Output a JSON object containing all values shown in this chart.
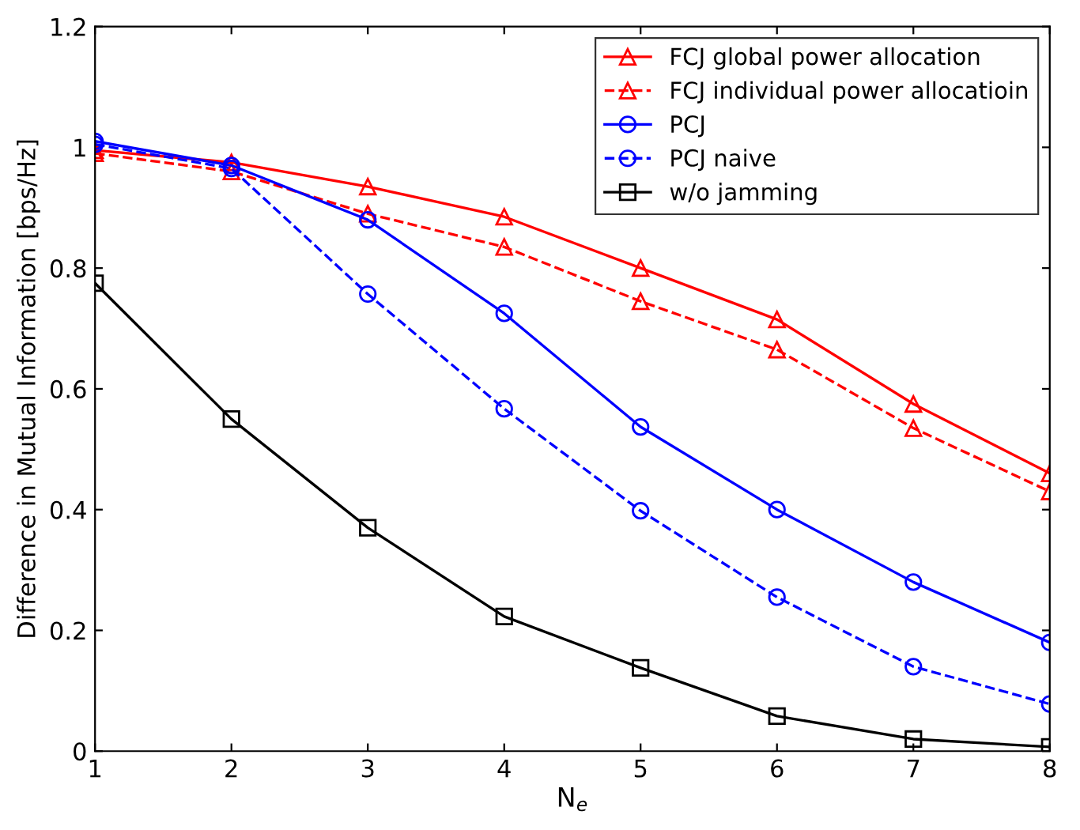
{
  "chart_data": {
    "type": "line",
    "xlabel": "N$_{e}$",
    "ylabel": "Difference in Mutual Information [bps/Hz]",
    "x": [
      1,
      2,
      3,
      4,
      5,
      6,
      7,
      8
    ],
    "series": [
      {
        "name": "FCJ global power allocation",
        "color": "#ff0000",
        "marker": "triangle",
        "line_style": "solid",
        "values": [
          0.995,
          0.975,
          0.935,
          0.885,
          0.8,
          0.715,
          0.575,
          0.46
        ]
      },
      {
        "name": "FCJ individual power allocatioin",
        "color": "#ff0000",
        "marker": "triangle",
        "line_style": "dashed",
        "values": [
          0.99,
          0.96,
          0.89,
          0.835,
          0.745,
          0.665,
          0.535,
          0.43
        ]
      },
      {
        "name": "PCJ",
        "color": "#0000ff",
        "marker": "circle",
        "line_style": "solid",
        "values": [
          1.01,
          0.97,
          0.88,
          0.725,
          0.537,
          0.4,
          0.28,
          0.18
        ]
      },
      {
        "name": "PCJ naive",
        "color": "#0000ff",
        "marker": "circle",
        "line_style": "dashed",
        "values": [
          1.005,
          0.965,
          0.757,
          0.567,
          0.398,
          0.255,
          0.14,
          0.078
        ]
      },
      {
        "name": "w/o jamming",
        "color": "#000000",
        "marker": "square",
        "line_style": "solid",
        "values": [
          0.775,
          0.55,
          0.37,
          0.223,
          0.138,
          0.058,
          0.02,
          0.007
        ]
      }
    ],
    "xlim": [
      1,
      8
    ],
    "xticks": [
      1,
      2,
      3,
      4,
      5,
      6,
      7,
      8
    ],
    "ylim": [
      0,
      1.2
    ],
    "yticks": [
      0,
      0.2,
      0.4,
      0.6,
      0.8,
      1,
      1.2
    ],
    "grid": false,
    "legend": "top right"
  }
}
